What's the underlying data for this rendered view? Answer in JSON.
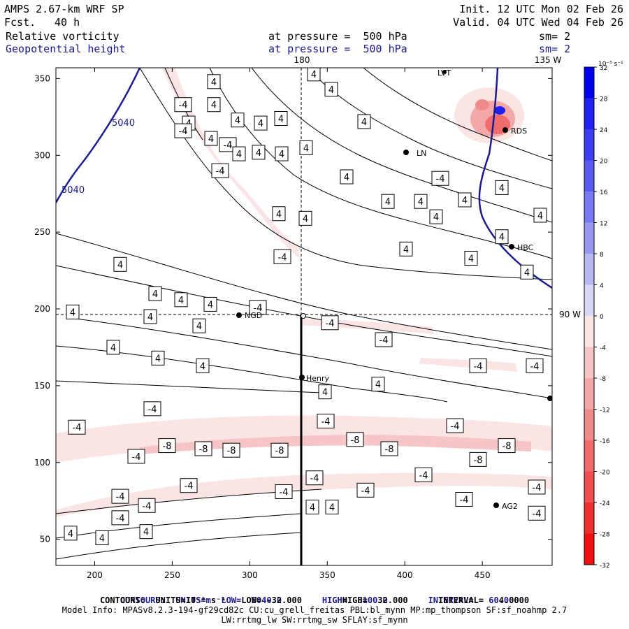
{
  "header": {
    "model": "AMPS 2.67-km WRF SP",
    "fcst_label": "Fcst.",
    "fcst_value": "40 h",
    "init": "Init. 12 UTC Mon 02 Feb 26",
    "valid": "Valid. 04 UTC Wed 04 Feb 26",
    "field1_name": "Relative vorticity",
    "field1_level": "at pressure =  500 hPa",
    "field1_sm": "sm= 2",
    "field2_name": "Geopotential height",
    "field2_level": "at pressure =  500 hPa",
    "field2_sm": "sm= 2",
    "lon_180": "180",
    "lon_135w": "135 W",
    "lon_90w": "90 W"
  },
  "footer": {
    "line1_label": "CONTOURS:",
    "line1_units": "UNITS=m",
    "line1_low": "LOW=  5040.0",
    "line1_high": "HIGH=  5100.0",
    "line1_interval": "INTERVAL=   60.000",
    "line2": "CONTOURS:  UNITS=10⁻⁵ s⁻¹   LOW= -32.000        HIGH=  32.000      INTERVAL=   4.0000",
    "line3": "Model Info: MPASv8.2.3-194-gf29cd82c CU:cu_grell_freitas PBL:bl_mynn MP:mp_thompson SF:sf_noahmp 2.7",
    "line4": "LW:rrtmg_lw SW:rrtmg_sw SFLAY:sf_mynn"
  },
  "colorbar": {
    "units": "10⁻⁵ s⁻¹",
    "ticks": [
      "32",
      "28",
      "24",
      "20",
      "16",
      "12",
      "8",
      "4",
      "0",
      "-4",
      "-8",
      "-12",
      "-16",
      "-20",
      "-24",
      "-28",
      "-32"
    ],
    "colors": [
      "#0000f0",
      "#2020f0",
      "#3c3cf0",
      "#5a5af0",
      "#7878f0",
      "#9898f0",
      "#b8b8f0",
      "#d8d8f6",
      "#ffffff",
      "#fbe4e4",
      "#f6c6c6",
      "#f3a8a8",
      "#f08a8a",
      "#f06c6c",
      "#f04e4e",
      "#f03030",
      "#f01010"
    ]
  },
  "stations": [
    {
      "name": "LVT"
    },
    {
      "name": "LN"
    },
    {
      "name": "RDS"
    },
    {
      "name": "HBC"
    },
    {
      "name": "NGD"
    },
    {
      "name": "Henry"
    },
    {
      "name": "AG2"
    }
  ],
  "chart_data": {
    "type": "contour",
    "title": "Relative vorticity and Geopotential height at 500 hPa",
    "x_axis": {
      "range": [
        175,
        495
      ],
      "ticks": [
        200,
        250,
        300,
        350,
        400,
        450
      ]
    },
    "y_axis": {
      "range": [
        33,
        357
      ],
      "ticks": [
        50,
        100,
        150,
        200,
        250,
        300,
        350
      ]
    },
    "height_contours": {
      "units": "m",
      "low": 5040.0,
      "high": 5100.0,
      "interval": 60.0,
      "labels": [
        "5040",
        "5040"
      ]
    },
    "vorticity_contours": {
      "units": "10^-5 s^-1",
      "low": -32.0,
      "high": 32.0,
      "interval": 4.0
    },
    "contour_labels": [
      {
        "text": "4",
        "x": 306,
        "y": 348
      },
      {
        "text": "-4",
        "x": 262,
        "y": 333
      },
      {
        "text": "4",
        "x": 306,
        "y": 333
      },
      {
        "text": "4",
        "x": 270,
        "y": 321
      },
      {
        "text": "-4",
        "x": 262,
        "y": 316
      },
      {
        "text": "4",
        "x": 340,
        "y": 323
      },
      {
        "text": "4",
        "x": 373,
        "y": 321
      },
      {
        "text": "4",
        "x": 402,
        "y": 324
      },
      {
        "text": "4",
        "x": 449,
        "y": 353
      },
      {
        "text": "4",
        "x": 474,
        "y": 343
      },
      {
        "text": "4",
        "x": 521,
        "y": 322
      },
      {
        "text": "4",
        "x": 302,
        "y": 311
      },
      {
        "text": "-4",
        "x": 326,
        "y": 307
      },
      {
        "text": "4",
        "x": 342,
        "y": 301
      },
      {
        "text": "4",
        "x": 370,
        "y": 302
      },
      {
        "text": "4",
        "x": 403,
        "y": 301
      },
      {
        "text": "4",
        "x": 438,
        "y": 305
      },
      {
        "text": "-4",
        "x": 315,
        "y": 290
      },
      {
        "text": "4",
        "x": 496,
        "y": 286
      },
      {
        "text": "-4",
        "x": 630,
        "y": 285
      },
      {
        "text": "4",
        "x": 555,
        "y": 270
      },
      {
        "text": "4",
        "x": 602,
        "y": 270
      },
      {
        "text": "4",
        "x": 718,
        "y": 279
      },
      {
        "text": "4",
        "x": 665,
        "y": 271
      },
      {
        "text": "4",
        "x": 399,
        "y": 262
      },
      {
        "text": "4",
        "x": 437,
        "y": 259
      },
      {
        "text": "4",
        "x": 624,
        "y": 260
      },
      {
        "text": "4",
        "x": 773,
        "y": 261
      },
      {
        "text": "4",
        "x": 718,
        "y": 247
      },
      {
        "text": "4",
        "x": 581,
        "y": 239
      },
      {
        "text": "-4",
        "x": 404,
        "y": 234
      },
      {
        "text": "4",
        "x": 674,
        "y": 233
      },
      {
        "text": "4",
        "x": 172,
        "y": 229
      },
      {
        "text": "4",
        "x": 754,
        "y": 224
      },
      {
        "text": "4",
        "x": 222,
        "y": 210
      },
      {
        "text": "4",
        "x": 259,
        "y": 206
      },
      {
        "text": "4",
        "x": 301,
        "y": 203
      },
      {
        "text": "-4",
        "x": 369,
        "y": 201
      },
      {
        "text": "4",
        "x": 104,
        "y": 198
      },
      {
        "text": "4",
        "x": 215,
        "y": 195
      },
      {
        "text": "4",
        "x": 285,
        "y": 189
      },
      {
        "text": "-4",
        "x": 472,
        "y": 191
      },
      {
        "text": "-4",
        "x": 549,
        "y": 180
      },
      {
        "text": "4",
        "x": 162,
        "y": 175
      },
      {
        "text": "4",
        "x": 226,
        "y": 168
      },
      {
        "text": "4",
        "x": 290,
        "y": 163
      },
      {
        "text": "-4",
        "x": 684,
        "y": 163
      },
      {
        "text": "-4",
        "x": 765,
        "y": 163
      },
      {
        "text": "4",
        "x": 541,
        "y": 151
      },
      {
        "text": "4",
        "x": 465,
        "y": 146
      },
      {
        "text": "-4",
        "x": 218,
        "y": 135
      },
      {
        "text": "-4",
        "x": 466,
        "y": 127
      },
      {
        "text": "-4",
        "x": 651,
        "y": 124
      },
      {
        "text": "-4",
        "x": 110,
        "y": 123
      },
      {
        "text": "-8",
        "x": 508,
        "y": 115
      },
      {
        "text": "-8",
        "x": 239,
        "y": 111
      },
      {
        "text": "-8",
        "x": 291,
        "y": 109
      },
      {
        "text": "-8",
        "x": 557,
        "y": 109
      },
      {
        "text": "-8",
        "x": 725,
        "y": 111
      },
      {
        "text": "-8",
        "x": 331,
        "y": 108
      },
      {
        "text": "-8",
        "x": 400,
        "y": 108
      },
      {
        "text": "-4",
        "x": 195,
        "y": 104
      },
      {
        "text": "-8",
        "x": 684,
        "y": 102
      },
      {
        "text": "-4",
        "x": 606,
        "y": 92
      },
      {
        "text": "-4",
        "x": 450,
        "y": 90
      },
      {
        "text": "-4",
        "x": 270,
        "y": 85
      },
      {
        "text": "-4",
        "x": 406,
        "y": 81
      },
      {
        "text": "-4",
        "x": 523,
        "y": 82
      },
      {
        "text": "-4",
        "x": 768,
        "y": 84
      },
      {
        "text": "-4",
        "x": 172,
        "y": 78
      },
      {
        "text": "-4",
        "x": 664,
        "y": 76
      },
      {
        "text": "-4",
        "x": 210,
        "y": 72
      },
      {
        "text": "4",
        "x": 447,
        "y": 71
      },
      {
        "text": "4",
        "x": 475,
        "y": 71
      },
      {
        "text": "-4",
        "x": 172,
        "y": 64
      },
      {
        "text": "-4",
        "x": 768,
        "y": 67
      },
      {
        "text": "4",
        "x": 209,
        "y": 55
      },
      {
        "text": "4",
        "x": 101,
        "y": 54
      },
      {
        "text": "4",
        "x": 146,
        "y": 51
      }
    ]
  }
}
